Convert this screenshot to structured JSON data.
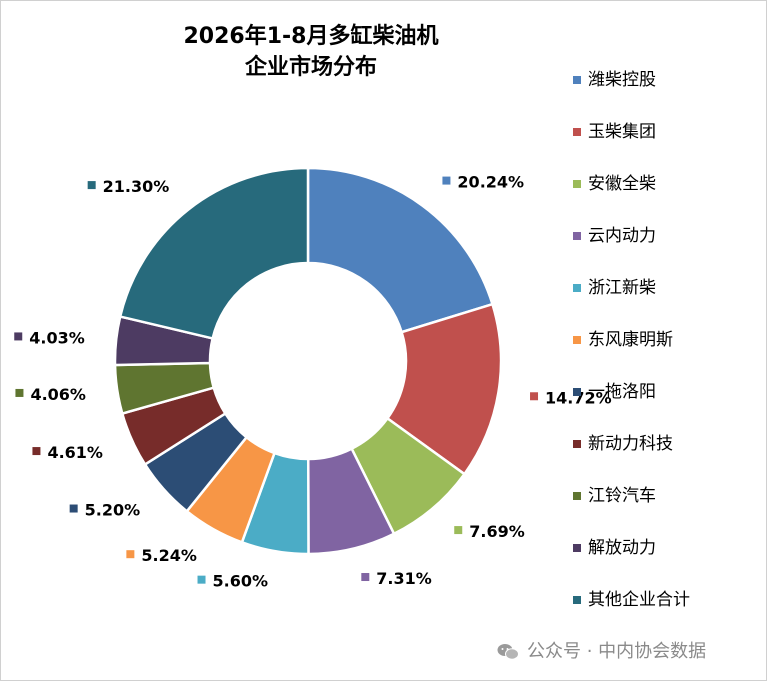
{
  "title_lines": [
    "2026年1-8月多缸柴油机",
    "企业市场分布"
  ],
  "watermark": "公众号 · 中内协会数据",
  "chart_data": {
    "type": "pie",
    "style": "doughnut",
    "title": "2026年1-8月多缸柴油机企业市场分布",
    "legend_position": "right",
    "series": [
      {
        "name": "潍柴控股",
        "value": 20.24,
        "label": "20.24%",
        "color": "#4F81BD"
      },
      {
        "name": "玉柴集团",
        "value": 14.72,
        "label": "14.72%",
        "color": "#C0504D"
      },
      {
        "name": "安徽全柴",
        "value": 7.69,
        "label": "7.69%",
        "color": "#9BBB59"
      },
      {
        "name": "云内动力",
        "value": 7.31,
        "label": "7.31%",
        "color": "#8064A2"
      },
      {
        "name": "浙江新柴",
        "value": 5.6,
        "label": "5.60%",
        "color": "#4BACC6"
      },
      {
        "name": "东风康明斯",
        "value": 5.24,
        "label": "5.24%",
        "color": "#F79646"
      },
      {
        "name": "一拖洛阳",
        "value": 5.2,
        "label": "5.20%",
        "color": "#2C4D75"
      },
      {
        "name": "新动力科技",
        "value": 4.61,
        "label": "4.61%",
        "color": "#772C2A"
      },
      {
        "name": "江铃汽车",
        "value": 4.06,
        "label": "4.06%",
        "color": "#5F7530"
      },
      {
        "name": "解放动力",
        "value": 4.03,
        "label": "4.03%",
        "color": "#4D3B62"
      },
      {
        "name": "其他企业合计",
        "value": 21.3,
        "label": "21.30%",
        "color": "#276A7C"
      }
    ]
  }
}
